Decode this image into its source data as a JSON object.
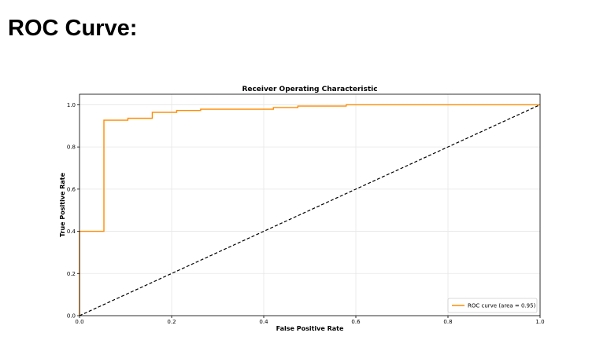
{
  "page": {
    "heading": "ROC Curve:"
  },
  "chart_data": {
    "type": "line",
    "title": "Receiver Operating Characteristic",
    "xlabel": "False Positive Rate",
    "ylabel": "True Positive Rate",
    "xlim": [
      0.0,
      1.0
    ],
    "ylim": [
      0.0,
      1.05
    ],
    "xticks": [
      "0.0",
      "0.2",
      "0.4",
      "0.6",
      "0.8",
      "1.0"
    ],
    "yticks": [
      "0.0",
      "0.2",
      "0.4",
      "0.6",
      "0.8",
      "1.0"
    ],
    "grid": true,
    "legend": "lower-right",
    "series": [
      {
        "name": "ROC curve (area = 0.95)",
        "color": "#ff8c00",
        "style": "solid",
        "step": true,
        "x": [
          0.0,
          0.0,
          0.053,
          0.053,
          0.105,
          0.105,
          0.158,
          0.158,
          0.211,
          0.211,
          0.263,
          0.263,
          0.421,
          0.421,
          0.474,
          0.474,
          0.579,
          0.579,
          1.0
        ],
        "y": [
          0.0,
          0.4,
          0.4,
          0.927,
          0.927,
          0.936,
          0.936,
          0.964,
          0.964,
          0.973,
          0.973,
          0.979,
          0.979,
          0.987,
          0.987,
          0.994,
          0.994,
          1.0,
          1.0
        ]
      },
      {
        "color": "#000000",
        "style": "dashed",
        "x": [
          0.0,
          1.0
        ],
        "y": [
          0.0,
          1.0
        ]
      }
    ]
  }
}
